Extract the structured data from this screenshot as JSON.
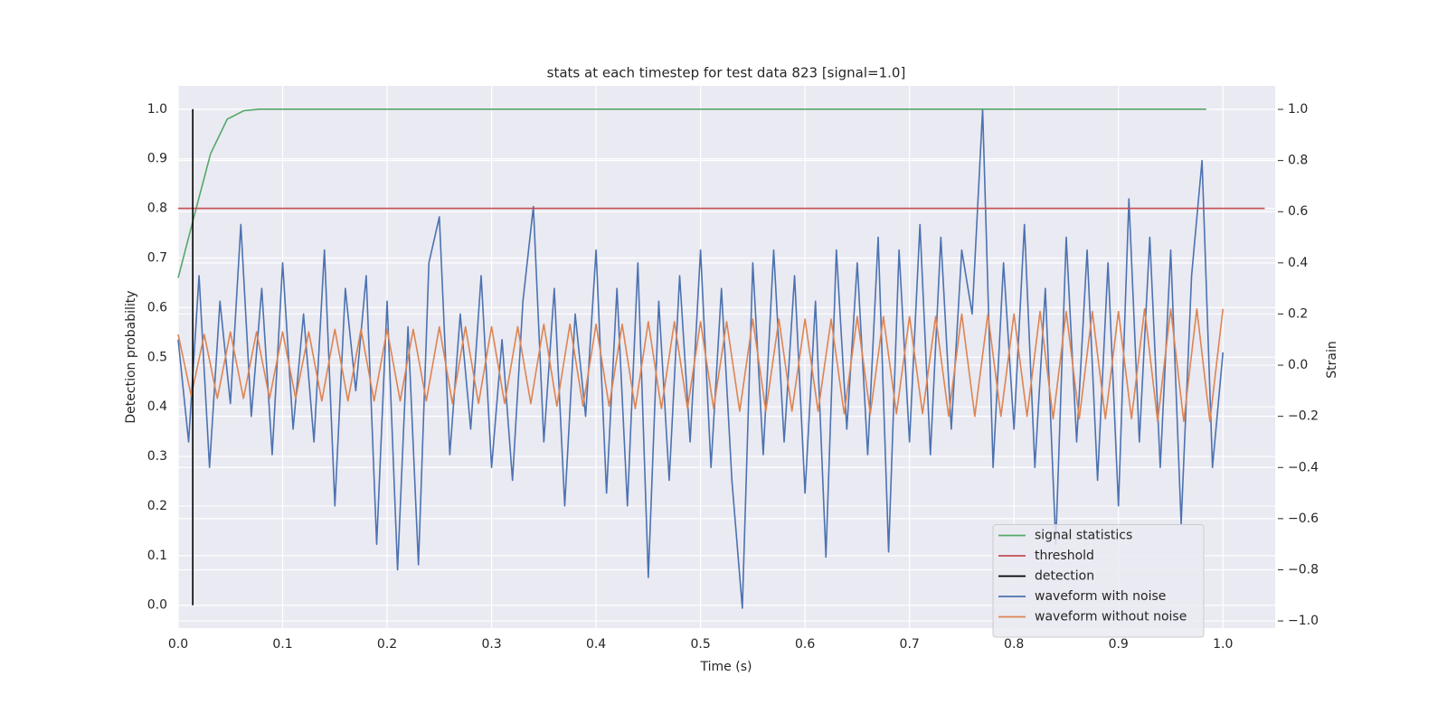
{
  "chart_data": {
    "type": "line",
    "title": "stats at each timestep for test data 823 [signal=1.0]",
    "x_label": "Time (s)",
    "y_label": "Detection probability",
    "y2_label": "Strain",
    "xlim": [
      0,
      1.05
    ],
    "xticks": [
      {
        "value": 0,
        "label": "0.0"
      },
      0.1,
      0.2,
      0.3,
      0.4,
      0.5,
      0.6,
      0.7,
      0.8,
      0.9,
      {
        "value": 1,
        "label": "1.0"
      }
    ],
    "ylim": [
      -0.046,
      1.047
    ],
    "yticks": [
      {
        "value": 0,
        "label": "0.0"
      },
      0.1,
      0.2,
      0.3,
      0.4,
      0.5,
      0.6,
      0.7,
      0.8,
      0.9,
      {
        "value": 1,
        "label": "1.0"
      }
    ],
    "y2lim": [
      -1.028,
      1.092
    ],
    "y2ticks": [
      {
        "value": -1,
        "label": "−1.0"
      },
      {
        "value": -0.8,
        "label": "−0.8"
      },
      {
        "value": -0.6,
        "label": "−0.6"
      },
      {
        "value": -0.4,
        "label": "−0.4"
      },
      {
        "value": -0.2,
        "label": "−0.2"
      },
      {
        "value": 0,
        "label": "0.0"
      },
      0.2,
      0.4,
      0.6,
      0.8,
      {
        "value": 1,
        "label": "1.0"
      }
    ],
    "grid": true,
    "legend": "lower right",
    "series": [
      {
        "name": "signal statistics",
        "color": "#55a868",
        "axis": "y",
        "x": [
          0,
          0.016,
          0.031,
          0.047,
          0.063,
          0.078,
          0.984
        ],
        "values": [
          0.66,
          0.79,
          0.91,
          0.98,
          0.997,
          1.0,
          1.0
        ]
      },
      {
        "name": "threshold",
        "color": "#c44e52",
        "axis": "y",
        "x": [
          0,
          1.04
        ],
        "values": [
          0.8,
          0.8
        ]
      },
      {
        "name": "detection",
        "color": "#000000",
        "axis": "y",
        "x": [
          0.014,
          0.014
        ],
        "values": [
          0,
          1
        ]
      },
      {
        "name": "waveform with noise",
        "color": "#4c72b0",
        "axis": "y2",
        "x": [
          0,
          0.01,
          0.02,
          0.03,
          0.04,
          0.05,
          0.06,
          0.07,
          0.08,
          0.09,
          0.1,
          0.11,
          0.12,
          0.13,
          0.14,
          0.15,
          0.16,
          0.17,
          0.18,
          0.19,
          0.2,
          0.21,
          0.22,
          0.23,
          0.24,
          0.25,
          0.26,
          0.27,
          0.28,
          0.29,
          0.3,
          0.31,
          0.32,
          0.33,
          0.34,
          0.35,
          0.36,
          0.37,
          0.38,
          0.39,
          0.4,
          0.41,
          0.42,
          0.43,
          0.44,
          0.45,
          0.46,
          0.47,
          0.48,
          0.49,
          0.5,
          0.51,
          0.52,
          0.53,
          0.54,
          0.55,
          0.56,
          0.57,
          0.58,
          0.59,
          0.6,
          0.61,
          0.62,
          0.63,
          0.64,
          0.65,
          0.66,
          0.67,
          0.68,
          0.69,
          0.7,
          0.71,
          0.72,
          0.73,
          0.74,
          0.75,
          0.76,
          0.77,
          0.78,
          0.79,
          0.8,
          0.81,
          0.82,
          0.83,
          0.84,
          0.85,
          0.86,
          0.87,
          0.88,
          0.89,
          0.9,
          0.91,
          0.92,
          0.93,
          0.94,
          0.95,
          0.96,
          0.97,
          0.98,
          0.99,
          1.0
        ],
        "values": [
          0.1,
          -0.3,
          0.35,
          -0.4,
          0.25,
          -0.15,
          0.55,
          -0.2,
          0.3,
          -0.35,
          0.4,
          -0.25,
          0.2,
          -0.3,
          0.45,
          -0.55,
          0.3,
          -0.1,
          0.35,
          -0.7,
          0.25,
          -0.8,
          0.15,
          -0.78,
          0.4,
          0.58,
          -0.35,
          0.2,
          -0.25,
          0.35,
          -0.4,
          0.1,
          -0.45,
          0.25,
          0.62,
          -0.3,
          0.3,
          -0.55,
          0.2,
          -0.2,
          0.45,
          -0.5,
          0.3,
          -0.55,
          0.4,
          -0.83,
          0.25,
          -0.45,
          0.35,
          -0.3,
          0.45,
          -0.4,
          0.3,
          -0.45,
          -0.95,
          0.4,
          -0.35,
          0.45,
          -0.3,
          0.35,
          -0.5,
          0.25,
          -0.75,
          0.45,
          -0.25,
          0.4,
          -0.35,
          0.5,
          -0.73,
          0.45,
          -0.3,
          0.55,
          -0.35,
          0.5,
          -0.25,
          0.45,
          0.2,
          1.0,
          -0.4,
          0.4,
          -0.25,
          0.55,
          -0.4,
          0.3,
          -0.7,
          0.5,
          -0.3,
          0.45,
          -0.45,
          0.4,
          -0.55,
          0.65,
          -0.3,
          0.5,
          -0.4,
          0.45,
          -0.62,
          0.35,
          0.8,
          -0.4,
          0.05
        ]
      },
      {
        "name": "waveform without noise",
        "color": "#dd8452",
        "axis": "y2",
        "x": [
          0,
          0.0125,
          0.025,
          0.0375,
          0.05,
          0.0625,
          0.075,
          0.0875,
          0.1,
          0.1125,
          0.125,
          0.1375,
          0.15,
          0.1625,
          0.175,
          0.1875,
          0.2,
          0.2125,
          0.225,
          0.2375,
          0.25,
          0.2625,
          0.275,
          0.2875,
          0.3,
          0.3125,
          0.325,
          0.3375,
          0.35,
          0.3625,
          0.375,
          0.3875,
          0.4,
          0.4125,
          0.425,
          0.4375,
          0.45,
          0.4625,
          0.475,
          0.4875,
          0.5,
          0.5125,
          0.525,
          0.5375,
          0.55,
          0.5625,
          0.575,
          0.5875,
          0.6,
          0.6125,
          0.625,
          0.6375,
          0.65,
          0.6625,
          0.675,
          0.6875,
          0.7,
          0.7125,
          0.725,
          0.7375,
          0.75,
          0.7625,
          0.775,
          0.7875,
          0.8,
          0.8125,
          0.825,
          0.8375,
          0.85,
          0.8625,
          0.875,
          0.8875,
          0.9,
          0.9125,
          0.925,
          0.9375,
          0.95,
          0.9625,
          0.975,
          0.9875,
          1.0
        ],
        "values": [
          0.12,
          -0.12,
          0.12,
          -0.13,
          0.13,
          -0.13,
          0.13,
          -0.13,
          0.13,
          -0.13,
          0.13,
          -0.14,
          0.14,
          -0.14,
          0.14,
          -0.14,
          0.14,
          -0.14,
          0.14,
          -0.14,
          0.15,
          -0.15,
          0.15,
          -0.15,
          0.15,
          -0.15,
          0.15,
          -0.15,
          0.16,
          -0.16,
          0.16,
          -0.16,
          0.16,
          -0.16,
          0.16,
          -0.17,
          0.17,
          -0.17,
          0.17,
          -0.17,
          0.17,
          -0.17,
          0.17,
          -0.18,
          0.18,
          -0.18,
          0.18,
          -0.18,
          0.18,
          -0.18,
          0.18,
          -0.19,
          0.19,
          -0.19,
          0.19,
          -0.19,
          0.19,
          -0.19,
          0.19,
          -0.2,
          0.2,
          -0.2,
          0.2,
          -0.2,
          0.2,
          -0.2,
          0.21,
          -0.21,
          0.21,
          -0.21,
          0.21,
          -0.21,
          0.21,
          -0.21,
          0.22,
          -0.22,
          0.22,
          -0.22,
          0.22,
          -0.22,
          0.22
        ]
      }
    ]
  }
}
